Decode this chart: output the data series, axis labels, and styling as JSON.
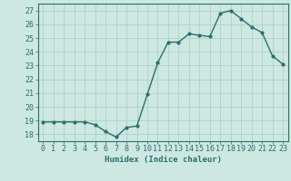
{
  "x": [
    0,
    1,
    2,
    3,
    4,
    5,
    6,
    7,
    8,
    9,
    10,
    11,
    12,
    13,
    14,
    15,
    16,
    17,
    18,
    19,
    20,
    21,
    22,
    23
  ],
  "y": [
    18.9,
    18.9,
    18.9,
    18.9,
    18.9,
    18.7,
    18.2,
    17.8,
    18.5,
    18.6,
    20.9,
    23.2,
    24.7,
    24.7,
    25.3,
    25.2,
    25.1,
    26.8,
    27.0,
    26.4,
    25.8,
    25.4,
    23.7,
    23.1
  ],
  "xlabel": "Humidex (Indice chaleur)",
  "ylim": [
    17.5,
    27.5
  ],
  "xlim": [
    -0.5,
    23.5
  ],
  "yticks": [
    18,
    19,
    20,
    21,
    22,
    23,
    24,
    25,
    26,
    27
  ],
  "xticks": [
    0,
    1,
    2,
    3,
    4,
    5,
    6,
    7,
    8,
    9,
    10,
    11,
    12,
    13,
    14,
    15,
    16,
    17,
    18,
    19,
    20,
    21,
    22,
    23
  ],
  "line_color": "#2d6e6e",
  "bg_color": "#cce8e0",
  "grid_color": "#aaccc4",
  "tick_color": "#2d6e6e",
  "label_fontsize": 6.5,
  "tick_fontsize": 6.0
}
